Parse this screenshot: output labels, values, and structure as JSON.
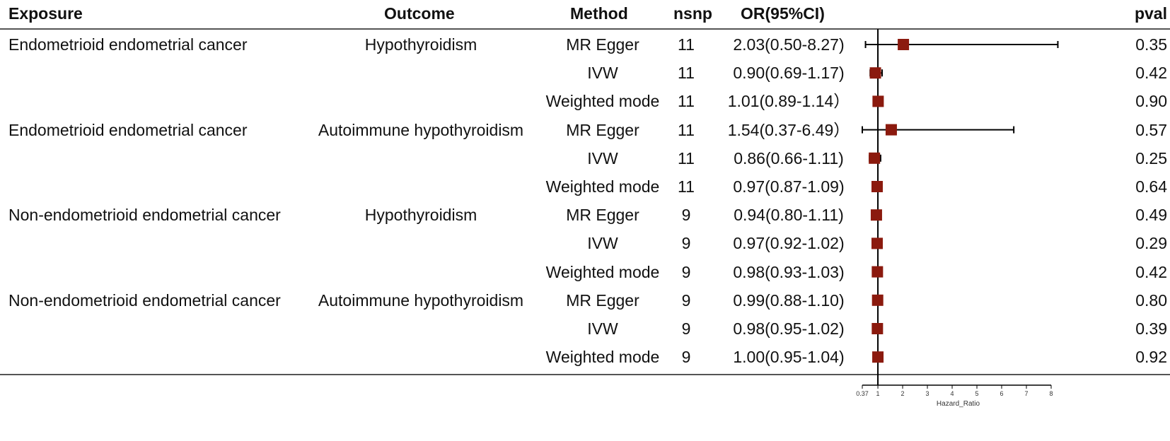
{
  "headers": {
    "exposure": "Exposure",
    "outcome": "Outcome",
    "method": "Method",
    "nsnp": "nsnp",
    "or": "OR(95%CI)",
    "pval": "pval"
  },
  "rows": [
    {
      "exposure": "Endometrioid endometrial cancer",
      "outcome": "Hypothyroidism",
      "method": "MR Egger",
      "nsnp": "11",
      "or_text": "2.03(0.50-8.27)",
      "pval": "0.35"
    },
    {
      "exposure": "",
      "outcome": "",
      "method": "IVW",
      "nsnp": "11",
      "or_text": "0.90(0.69-1.17)",
      "pval": "0.42"
    },
    {
      "exposure": "",
      "outcome": "",
      "method": "Weighted mode",
      "nsnp": "11",
      "or_text": "1.01(0.89-1.14）",
      "pval": "0.90"
    },
    {
      "exposure": "Endometrioid endometrial cancer",
      "outcome": "Autoimmune hypothyroidism",
      "method": "MR Egger",
      "nsnp": "11",
      "or_text": "1.54(0.37-6.49）",
      "pval": "0.57"
    },
    {
      "exposure": "",
      "outcome": "",
      "method": "IVW",
      "nsnp": "11",
      "or_text": "0.86(0.66-1.11)",
      "pval": "0.25"
    },
    {
      "exposure": "",
      "outcome": "",
      "method": "Weighted mode",
      "nsnp": "11",
      "or_text": "0.97(0.87-1.09)",
      "pval": "0.64"
    },
    {
      "exposure": "Non-endometrioid  endometrial cancer",
      "outcome": "Hypothyroidism",
      "method": "MR Egger",
      "nsnp": "9",
      "or_text": "0.94(0.80-1.11)",
      "pval": "0.49"
    },
    {
      "exposure": "",
      "outcome": "",
      "method": "IVW",
      "nsnp": "9",
      "or_text": "0.97(0.92-1.02)",
      "pval": "0.29"
    },
    {
      "exposure": "",
      "outcome": "",
      "method": "Weighted mode",
      "nsnp": "9",
      "or_text": "0.98(0.93-1.03)",
      "pval": "0.42"
    },
    {
      "exposure": "Non-endometrioid  endometrial cancer",
      "outcome": "Autoimmune hypothyroidism",
      "method": "MR Egger",
      "nsnp": "9",
      "or_text": "0.99(0.88-1.10)",
      "pval": "0.80"
    },
    {
      "exposure": "",
      "outcome": "",
      "method": "IVW",
      "nsnp": "9",
      "or_text": "0.98(0.95-1.02)",
      "pval": "0.39"
    },
    {
      "exposure": "",
      "outcome": "",
      "method": "Weighted mode",
      "nsnp": "9",
      "or_text": "1.00(0.95-1.04)",
      "pval": "0.92"
    }
  ],
  "chart_data": {
    "type": "forest",
    "xlabel": "Hazard_Ratio",
    "xticks": [
      0.37,
      1,
      2,
      3,
      4,
      5,
      6,
      7,
      8
    ],
    "xtick_labels": [
      "0.37",
      "1",
      "2",
      "3",
      "4",
      "5",
      "6",
      "7",
      "8"
    ],
    "xlim": [
      0.37,
      8.27
    ],
    "reference_line": 1,
    "marker_color": "#8b1a0e",
    "points": [
      {
        "or": 2.03,
        "lo": 0.5,
        "hi": 8.27
      },
      {
        "or": 0.9,
        "lo": 0.69,
        "hi": 1.17
      },
      {
        "or": 1.01,
        "lo": 0.89,
        "hi": 1.14
      },
      {
        "or": 1.54,
        "lo": 0.37,
        "hi": 6.49
      },
      {
        "or": 0.86,
        "lo": 0.66,
        "hi": 1.11
      },
      {
        "or": 0.97,
        "lo": 0.87,
        "hi": 1.09
      },
      {
        "or": 0.94,
        "lo": 0.8,
        "hi": 1.11
      },
      {
        "or": 0.97,
        "lo": 0.92,
        "hi": 1.02
      },
      {
        "or": 0.98,
        "lo": 0.93,
        "hi": 1.03
      },
      {
        "or": 0.99,
        "lo": 0.88,
        "hi": 1.1
      },
      {
        "or": 0.98,
        "lo": 0.95,
        "hi": 1.02
      },
      {
        "or": 1.0,
        "lo": 0.95,
        "hi": 1.04
      }
    ]
  }
}
